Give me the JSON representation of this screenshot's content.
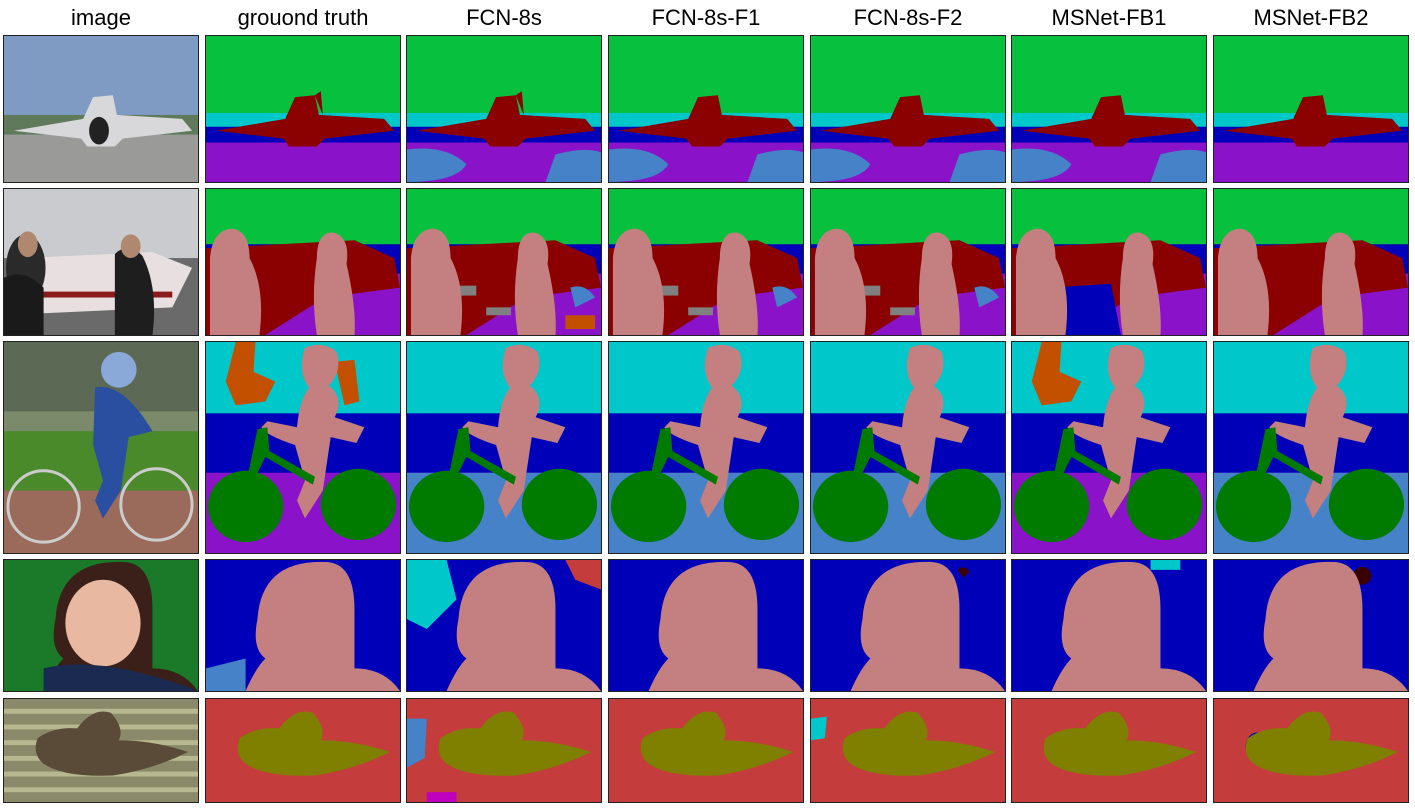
{
  "columns": [
    "image",
    "grouond truth",
    "FCN-8s",
    "FCN-8s-F1",
    "FCN-8s-F2",
    "MSNet-FB1",
    "MSNet-FB2"
  ],
  "rows": [
    "airplane",
    "people-plane",
    "boy-bicycle",
    "girl",
    "duck"
  ],
  "colors": {
    "sky": "#07c03d",
    "airplane": "#8b0000",
    "road": "#8a13c9",
    "building": "#0000b8",
    "tree": "#00c7c9",
    "person": "#c48080",
    "bicycle": "#017a00",
    "water": "#c43c3c",
    "duck": "#7f7f00",
    "grass": "#4682c8",
    "fence": "#c35000",
    "gray": "#808080"
  }
}
